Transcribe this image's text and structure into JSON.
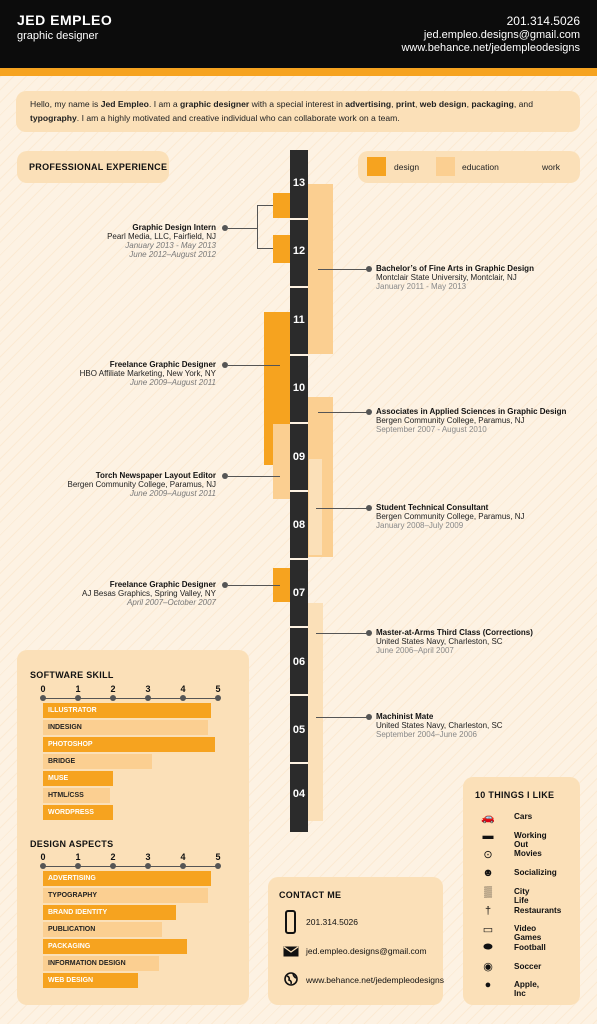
{
  "header": {
    "name": "JED EMPLEO",
    "title": "graphic designer",
    "phone": "201.314.5026",
    "email": "jed.empleo.designs@gmail.com",
    "website": "www.behance.net/jedempleodesigns"
  },
  "intro": {
    "p1": "Hello, my name is ",
    "name": "Jed Empleo",
    "p2": ". I am a ",
    "role": "graphic designer",
    "p3": " with a special interest in ",
    "i1": "advertising",
    "c1": ", ",
    "i2": "print",
    "c2": ", ",
    "i3": "web design",
    "c3": ", ",
    "i4": "packaging",
    "c4": ", and ",
    "i5": "typography",
    "p4": ". I am a highly motivated and creative individual who can collaborate work on a team."
  },
  "experience": {
    "title": "PROFESSIONAL EXPERIENCE",
    "legend": [
      {
        "label": "design",
        "color": "#f6a31f"
      },
      {
        "label": "education",
        "color": "#fbcf91"
      },
      {
        "label": "work",
        "color": "#fbe0b8"
      }
    ],
    "years": [
      "13",
      "12",
      "11",
      "10",
      "09",
      "08",
      "07",
      "06",
      "05",
      "04"
    ],
    "left_entries": [
      {
        "title": "Graphic Design Intern",
        "org": "Pearl Media, LLC, Fairfield, NJ",
        "dates": [
          "January 2013 - May 2013",
          "June 2012–August 2012"
        ]
      },
      {
        "title": "Freelance Graphic Designer",
        "org": "HBO Affiliate Marketing, New York, NY",
        "dates": [
          "June 2009–August 2011"
        ]
      },
      {
        "title": "Torch Newspaper Layout Editor",
        "org": "Bergen Community College, Paramus, NJ",
        "dates": [
          "June 2009–August 2011"
        ]
      },
      {
        "title": "Freelance Graphic Designer",
        "org": "AJ Besas Graphics, Spring Valley, NY",
        "dates": [
          "April 2007–October 2007"
        ]
      }
    ],
    "right_entries": [
      {
        "title": "Bachelor’s of Fine Arts in Graphic Design",
        "org": "Montclair State University, Montclair, NJ",
        "dates": "January 2011 - May 2013"
      },
      {
        "title": "Associates in Applied Sciences in Graphic Design",
        "org": "Bergen Community College, Paramus, NJ",
        "dates": "September 2007 - August 2010"
      },
      {
        "title": "Student Technical Consultant",
        "org": "Bergen Community College, Paramus, NJ",
        "dates": "January 2008–July 2009"
      },
      {
        "title": "Master-at-Arms Third Class (Corrections)",
        "org": "United States Navy, Charleston, SC",
        "dates": "June 2006–April 2007"
      },
      {
        "title": "Machinist Mate",
        "org": "United States Navy, Charleston, SC",
        "dates": "September 2004–June 2006"
      }
    ]
  },
  "software": {
    "title": "SOFTWARE SKILL",
    "scale": [
      "0",
      "1",
      "2",
      "3",
      "4",
      "5"
    ],
    "skills": [
      {
        "label": "ILLUSTRATOR",
        "level": 4.8,
        "shade": "design"
      },
      {
        "label": "INDESIGN",
        "level": 4.7,
        "shade": "education"
      },
      {
        "label": "PHOTOSHOP",
        "level": 4.9,
        "shade": "design"
      },
      {
        "label": "BRIDGE",
        "level": 3.1,
        "shade": "education"
      },
      {
        "label": "MUSE",
        "level": 2.0,
        "shade": "design"
      },
      {
        "label": "HTML/CSS",
        "level": 1.9,
        "shade": "education"
      },
      {
        "label": "WORDPRESS",
        "level": 2.0,
        "shade": "design"
      }
    ]
  },
  "design_aspects": {
    "title": "DESIGN ASPECTS",
    "scale": [
      "0",
      "1",
      "2",
      "3",
      "4",
      "5"
    ],
    "skills": [
      {
        "label": "ADVERTISING",
        "level": 4.8,
        "shade": "design"
      },
      {
        "label": "TYPOGRAPHY",
        "level": 4.7,
        "shade": "education"
      },
      {
        "label": "BRAND IDENTITY",
        "level": 3.8,
        "shade": "design"
      },
      {
        "label": "PUBLICATION",
        "level": 3.4,
        "shade": "education"
      },
      {
        "label": "PACKAGING",
        "level": 4.1,
        "shade": "design"
      },
      {
        "label": "INFORMATION DESIGN",
        "level": 3.3,
        "shade": "education"
      },
      {
        "label": "WEB DESIGN",
        "level": 2.7,
        "shade": "design"
      }
    ]
  },
  "contact": {
    "title": "CONTACT ME",
    "items": [
      {
        "icon": "phone-icon",
        "text": "201.314.5026"
      },
      {
        "icon": "envelope-icon",
        "text": "jed.empleo.designs@gmail.com"
      },
      {
        "icon": "globe-icon",
        "text": "www.behance.net/jedempleodesigns"
      }
    ]
  },
  "things": {
    "title": "10 THINGS I LIKE",
    "items": [
      {
        "icon": "car-icon",
        "label": "Cars"
      },
      {
        "icon": "dumbbell-icon",
        "label": "Working Out"
      },
      {
        "icon": "film-reel-icon",
        "label": "Movies"
      },
      {
        "icon": "people-icon",
        "label": "Socializing"
      },
      {
        "icon": "city-icon",
        "label": "City Life"
      },
      {
        "icon": "fork-knife-icon",
        "label": "Restaurants"
      },
      {
        "icon": "gamepad-icon",
        "label": "Video Games"
      },
      {
        "icon": "football-icon",
        "label": "Football"
      },
      {
        "icon": "soccer-ball-icon",
        "label": "Soccer"
      },
      {
        "icon": "apple-icon",
        "label": "Apple, Inc"
      }
    ]
  }
}
